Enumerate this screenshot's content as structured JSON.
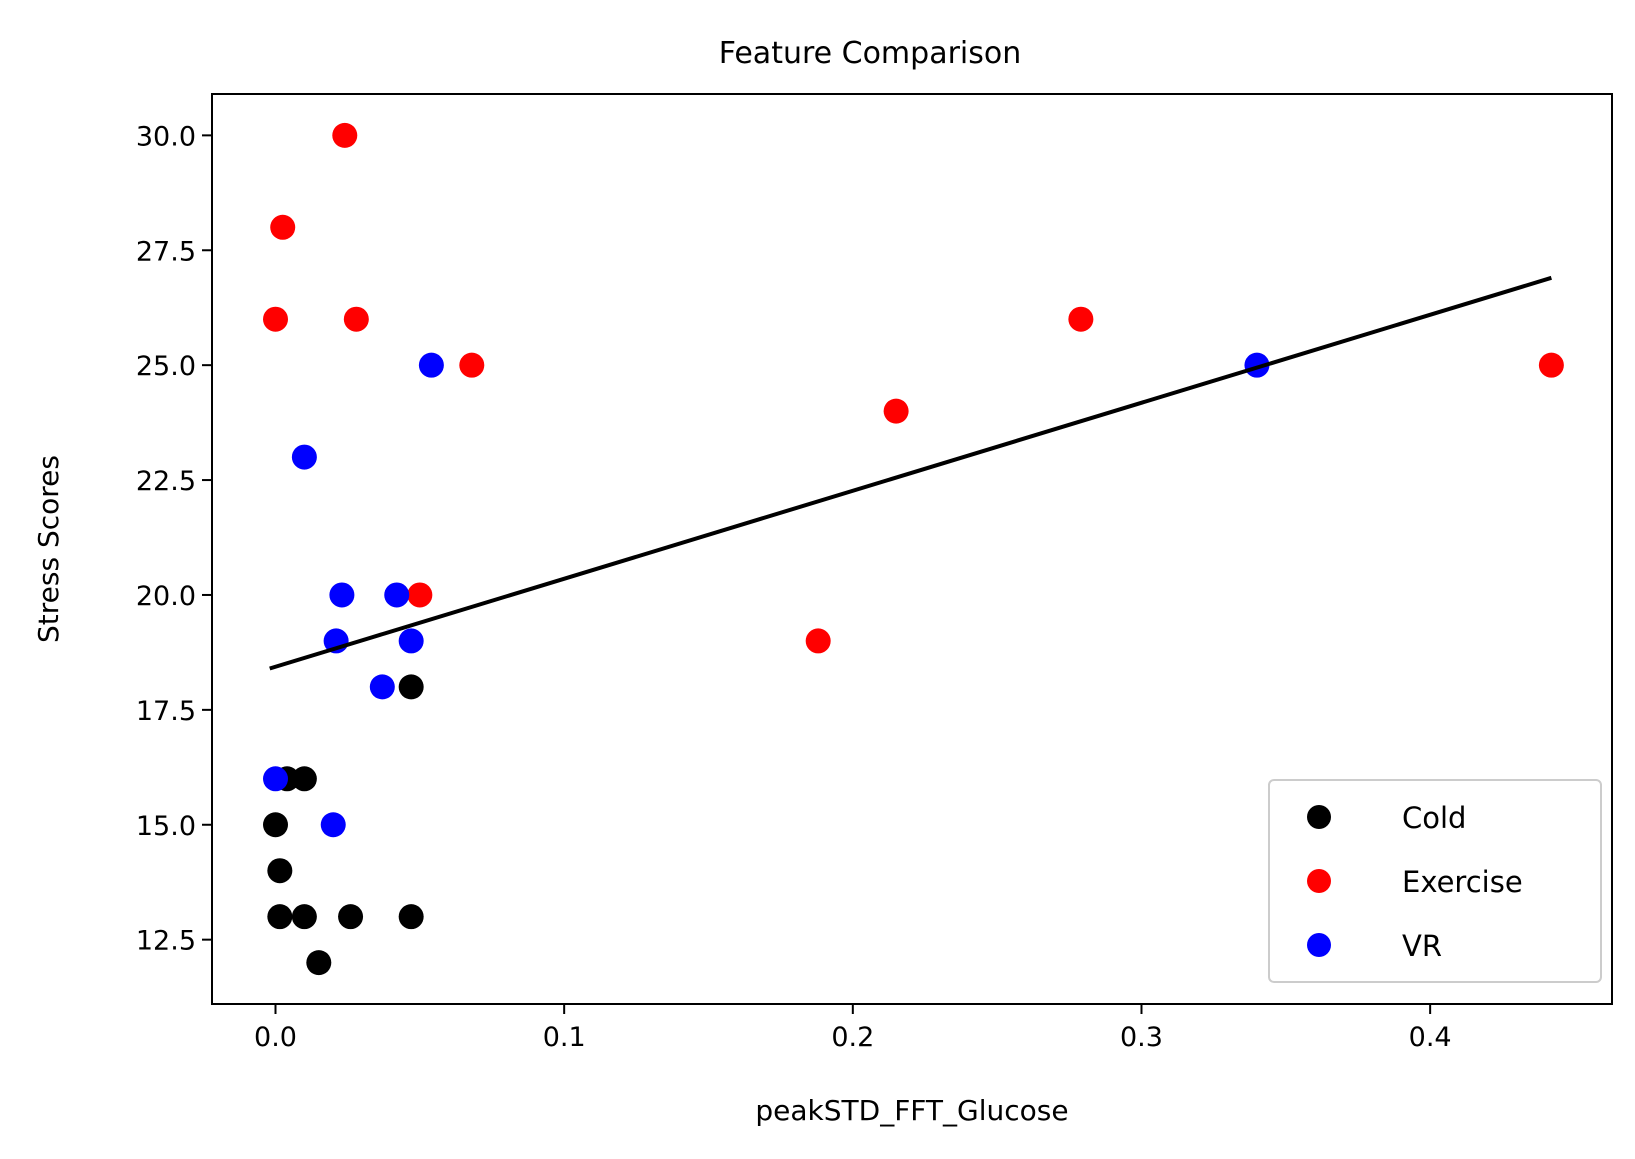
{
  "chart_data": {
    "type": "scatter",
    "title": "Feature Comparison",
    "xlabel": "peakSTD_FFT_Glucose",
    "ylabel": "Stress Scores",
    "xlim": [
      -0.022,
      0.463
    ],
    "ylim": [
      11.1,
      30.9
    ],
    "x_ticks": [
      0.0,
      0.1,
      0.2,
      0.3,
      0.4
    ],
    "x_tick_labels": [
      "0.0",
      "0.1",
      "0.2",
      "0.3",
      "0.4"
    ],
    "y_ticks": [
      12.5,
      15.0,
      17.5,
      20.0,
      22.5,
      25.0,
      27.5,
      30.0
    ],
    "y_tick_labels": [
      "12.5",
      "15.0",
      "17.5",
      "20.0",
      "22.5",
      "25.0",
      "27.5",
      "30.0"
    ],
    "grid": false,
    "legend_position": "bottom-right",
    "series": [
      {
        "name": "Cold",
        "color": "#000000",
        "points": [
          [
            0.0,
            15
          ],
          [
            0.0015,
            14
          ],
          [
            0.0015,
            13
          ],
          [
            0.004,
            16
          ],
          [
            0.01,
            16
          ],
          [
            0.01,
            13
          ],
          [
            0.015,
            12
          ],
          [
            0.026,
            13
          ],
          [
            0.047,
            18
          ],
          [
            0.047,
            13
          ]
        ]
      },
      {
        "name": "Exercise",
        "color": "#ff0000",
        "points": [
          [
            0.0,
            26
          ],
          [
            0.0025,
            28
          ],
          [
            0.024,
            30
          ],
          [
            0.028,
            26
          ],
          [
            0.05,
            20
          ],
          [
            0.068,
            25
          ],
          [
            0.188,
            19
          ],
          [
            0.215,
            24
          ],
          [
            0.279,
            26
          ],
          [
            0.442,
            25
          ]
        ]
      },
      {
        "name": "VR",
        "color": "#0000ff",
        "points": [
          [
            0.0,
            16
          ],
          [
            0.01,
            23
          ],
          [
            0.02,
            15
          ],
          [
            0.021,
            19
          ],
          [
            0.023,
            20
          ],
          [
            0.037,
            18
          ],
          [
            0.042,
            20
          ],
          [
            0.047,
            19
          ],
          [
            0.054,
            25
          ],
          [
            0.34,
            25
          ]
        ]
      }
    ],
    "fit_line": {
      "color": "#000000",
      "x": [
        -0.002,
        0.442
      ],
      "y": [
        18.4,
        26.9
      ]
    }
  }
}
